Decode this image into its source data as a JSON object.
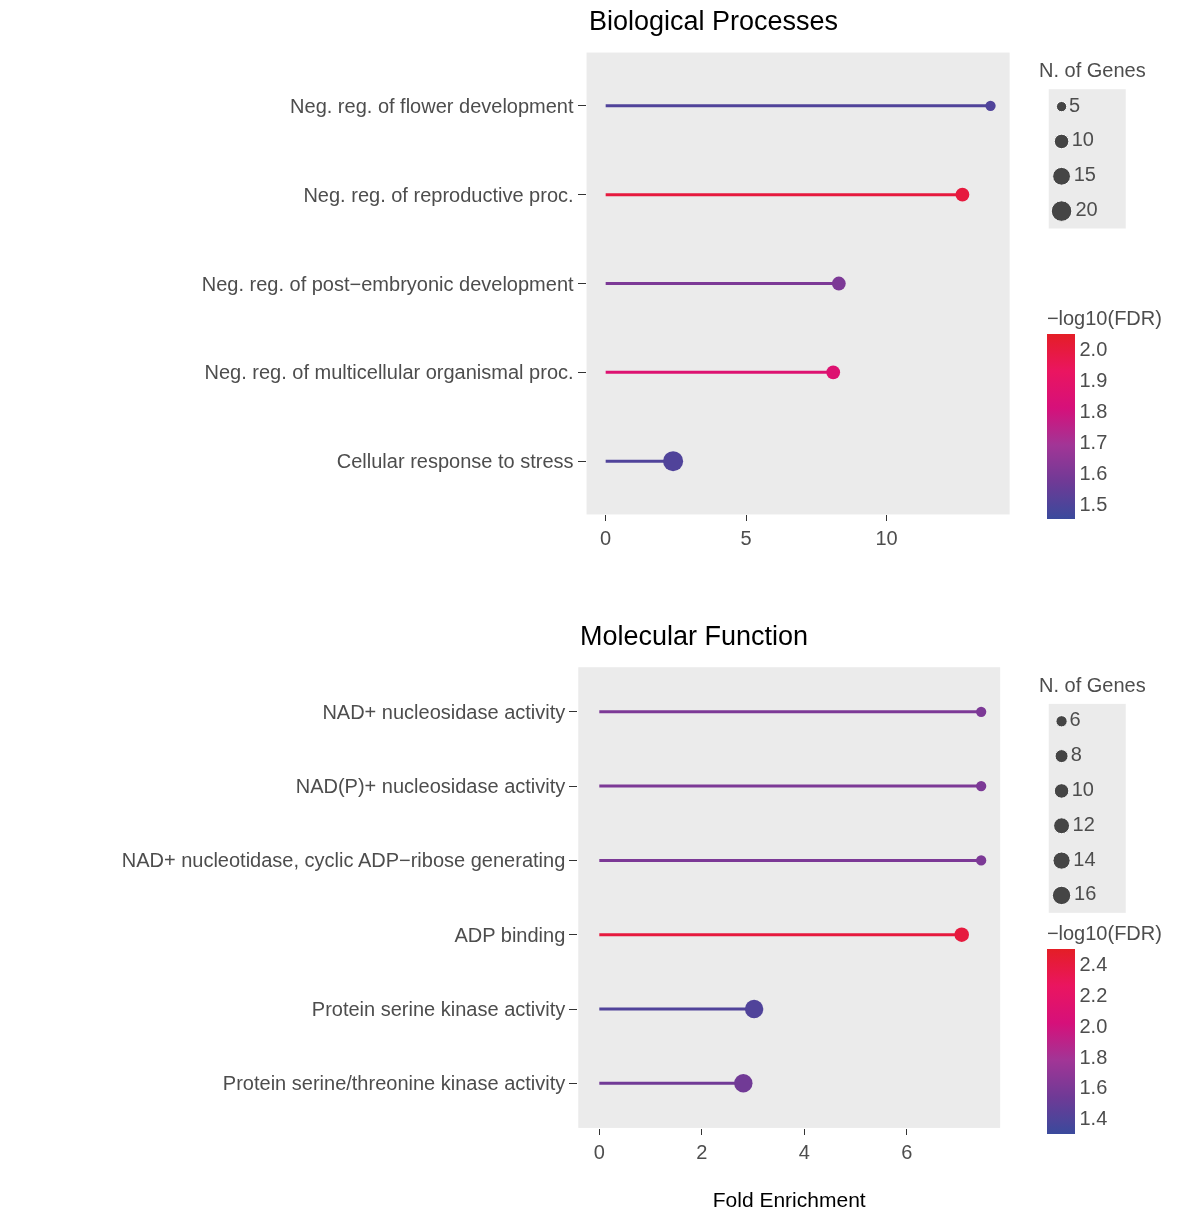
{
  "chart_data": [
    {
      "type": "lollipop",
      "orientation": "horizontal",
      "title": "Biological Processes",
      "categories": [
        "Neg. reg. of flower development",
        "Neg. reg. of reproductive proc.",
        "Neg. reg. of post−embryonic development",
        "Neg. reg. of multicellular organismal proc.",
        "Cellular response to stress"
      ],
      "values": [
        13.7,
        12.7,
        8.3,
        8.1,
        2.4
      ],
      "sizes": [
        5,
        9,
        9,
        9,
        19
      ],
      "size_legend": [
        5,
        10,
        15,
        20
      ],
      "legend_title": "N. of Genes",
      "cvalues": [
        1.5,
        2.0,
        1.6,
        1.85,
        1.5
      ],
      "clabel": "−log10(FDR)",
      "clim": [
        1.45,
        2.05
      ],
      "cticks": [
        1.5,
        1.6,
        1.7,
        1.8,
        1.9,
        {
          "value": 2.0,
          "label": "2.0"
        }
      ],
      "xlim": [
        -0.68,
        14.38
      ],
      "xticks": [
        0,
        5,
        10
      ],
      "grid": false,
      "marker": "circle"
    },
    {
      "type": "lollipop",
      "orientation": "horizontal",
      "title": "Molecular Function",
      "categories": [
        "NAD+ nucleosidase activity",
        "NAD(P)+ nucleosidase activity",
        "NAD+ nucleotidase, cyclic ADP−ribose generating",
        "ADP binding",
        "Protein serine kinase activity",
        "Protein serine/threonine kinase activity"
      ],
      "values": [
        7.45,
        7.45,
        7.45,
        7.07,
        3.02,
        2.81
      ],
      "sizes": [
        5,
        5,
        5,
        10,
        16,
        16
      ],
      "size_legend": [
        6,
        8,
        10,
        12,
        14,
        16
      ],
      "legend_title": "N. of Genes",
      "cvalues": [
        1.6,
        1.6,
        1.6,
        2.4,
        1.4,
        1.55
      ],
      "clabel": "−log10(FDR)",
      "clim": [
        1.3,
        2.5
      ],
      "cticks": [
        1.4,
        1.6,
        1.8,
        {
          "value": 2.0,
          "label": "2.0"
        },
        2.2,
        2.4
      ],
      "xlim": [
        -0.41,
        7.82
      ],
      "xticks": [
        0,
        2,
        4,
        6
      ],
      "xlabel": "Fold Enrichment",
      "grid": false,
      "marker": "circle"
    }
  ]
}
